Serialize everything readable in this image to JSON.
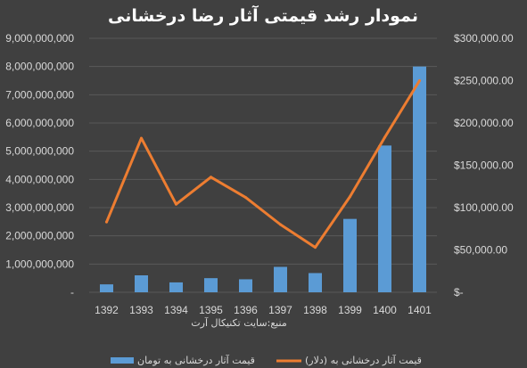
{
  "chart_data": {
    "type": "bar",
    "title": "نمودار رشد قیمتی آثار رضا درخشانی",
    "source_note": "منبع:سایت تکنیکال آرت",
    "categories": [
      "1392",
      "1393",
      "1394",
      "1395",
      "1396",
      "1397",
      "1398",
      "1399",
      "1400",
      "1401"
    ],
    "left_axis": {
      "ticks": [
        "-",
        "1,000,000,000",
        "2,000,000,000",
        "3,000,000,000",
        "4,000,000,000",
        "5,000,000,000",
        "6,000,000,000",
        "7,000,000,000",
        "8,000,000,000",
        "9,000,000,000"
      ],
      "ylim": [
        0,
        9000000000
      ]
    },
    "right_axis": {
      "ticks": [
        "$-",
        "$50,000.00",
        "$100,000.00",
        "$150,000.00",
        "$200,000.00",
        "$250,000.00",
        "$300,000.00"
      ],
      "ylim": [
        0,
        300000
      ]
    },
    "series": [
      {
        "name": "قیمت آثار درخشانی به تومان",
        "type": "bar",
        "axis": "left",
        "color": "#5b9bd5",
        "values": [
          280000000,
          600000000,
          350000000,
          500000000,
          460000000,
          900000000,
          680000000,
          2600000000,
          5200000000,
          8000000000
        ]
      },
      {
        "name": "قیمت آثار درخشانی به (دلار)",
        "type": "line",
        "axis": "right",
        "color": "#ed7d31",
        "values": [
          83000,
          182000,
          104000,
          136000,
          112000,
          80000,
          53000,
          113000,
          183000,
          250000
        ]
      }
    ],
    "grid": true,
    "legend_position": "bottom"
  }
}
